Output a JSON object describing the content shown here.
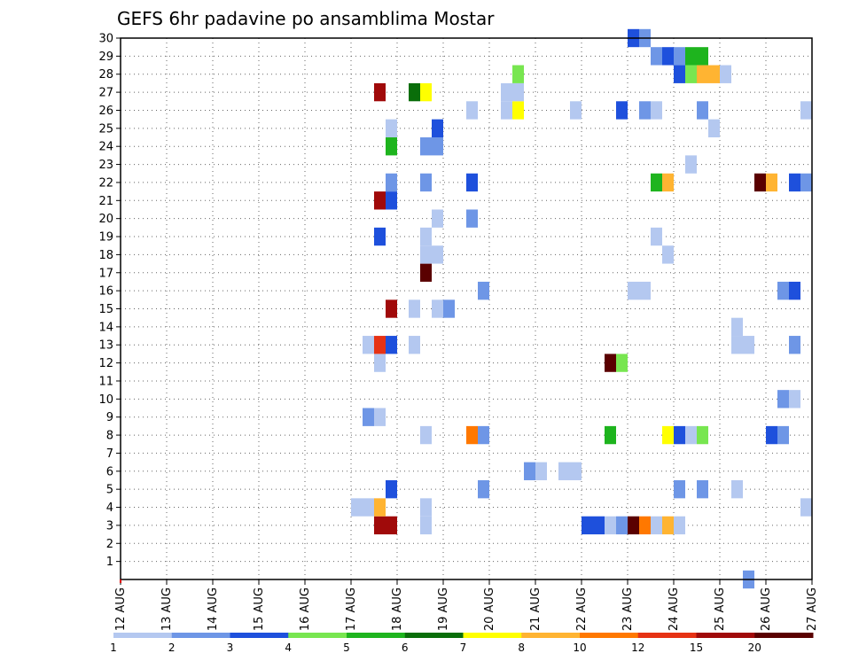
{
  "chart_data": {
    "type": "heatmap",
    "title": "GEFS 6hr padavine po ansamblima Mostar",
    "xlabel": "",
    "ylabel": "",
    "x_ticks": [
      "12 AUG",
      "13 AUG",
      "14 AUG",
      "15 AUG",
      "16 AUG",
      "17 AUG",
      "18 AUG",
      "19 AUG",
      "20 AUG",
      "21 AUG",
      "22 AUG",
      "23 AUG",
      "24 AUG",
      "25 AUG",
      "26 AUG",
      "27 AUG"
    ],
    "y_ticks": [
      "1",
      "2",
      "3",
      "4",
      "5",
      "6",
      "7",
      "8",
      "9",
      "10",
      "11",
      "12",
      "13",
      "14",
      "15",
      "16",
      "17",
      "18",
      "19",
      "20",
      "21",
      "22",
      "23",
      "24",
      "25",
      "26",
      "27",
      "28",
      "29",
      "30"
    ],
    "x_range_days": [
      0,
      15
    ],
    "y_range": [
      0,
      30
    ],
    "grid": true,
    "colorbar": {
      "labels": [
        "1",
        "2",
        "3",
        "4",
        "5",
        "6",
        "7",
        "8",
        "10",
        "12",
        "15",
        "20"
      ],
      "colors": [
        "#b4c8f0",
        "#6e96e6",
        "#1e50dc",
        "#78e650",
        "#1eb41e",
        "#0a6e0a",
        "#ffff00",
        "#ffb432",
        "#ff7800",
        "#e63214",
        "#a00a0a",
        "#5a0000"
      ]
    },
    "cell_days": 0.25,
    "cells": [
      [
        5.0,
        4,
        0
      ],
      [
        5.25,
        4,
        0
      ],
      [
        5.25,
        9,
        1
      ],
      [
        5.5,
        9,
        0
      ],
      [
        5.5,
        3,
        10
      ],
      [
        5.5,
        4,
        7
      ],
      [
        5.5,
        12,
        0
      ],
      [
        5.5,
        13,
        9
      ],
      [
        5.5,
        19,
        2
      ],
      [
        5.5,
        21,
        10
      ],
      [
        5.5,
        27,
        10
      ],
      [
        5.25,
        13,
        0
      ],
      [
        5.75,
        3,
        10
      ],
      [
        5.75,
        5,
        2
      ],
      [
        5.75,
        13,
        2
      ],
      [
        5.75,
        15,
        10
      ],
      [
        5.75,
        21,
        2
      ],
      [
        5.75,
        22,
        1
      ],
      [
        5.75,
        24,
        4
      ],
      [
        5.75,
        25,
        0
      ],
      [
        6.25,
        13,
        0
      ],
      [
        6.25,
        15,
        0
      ],
      [
        6.25,
        27,
        5
      ],
      [
        6.5,
        3,
        0
      ],
      [
        6.5,
        4,
        0
      ],
      [
        6.5,
        8,
        0
      ],
      [
        6.5,
        17,
        11
      ],
      [
        6.5,
        18,
        0
      ],
      [
        6.5,
        19,
        0
      ],
      [
        6.5,
        22,
        1
      ],
      [
        6.5,
        24,
        1
      ],
      [
        6.5,
        27,
        6
      ],
      [
        6.75,
        15,
        0
      ],
      [
        6.75,
        18,
        0
      ],
      [
        6.75,
        20,
        0
      ],
      [
        6.75,
        24,
        1
      ],
      [
        6.75,
        25,
        2
      ],
      [
        7.0,
        15,
        1
      ],
      [
        7.5,
        8,
        8
      ],
      [
        7.5,
        20,
        1
      ],
      [
        7.5,
        22,
        2
      ],
      [
        7.5,
        26,
        0
      ],
      [
        7.75,
        5,
        1
      ],
      [
        7.75,
        8,
        1
      ],
      [
        7.75,
        16,
        1
      ],
      [
        8.25,
        26,
        0
      ],
      [
        8.25,
        27,
        0
      ],
      [
        8.5,
        26,
        6
      ],
      [
        8.5,
        27,
        0
      ],
      [
        8.5,
        28,
        3
      ],
      [
        8.75,
        6,
        1
      ],
      [
        9.0,
        6,
        0
      ],
      [
        9.5,
        6,
        0
      ],
      [
        9.75,
        6,
        0
      ],
      [
        9.75,
        26,
        0
      ],
      [
        10.0,
        3,
        2
      ],
      [
        10.25,
        3,
        2
      ],
      [
        10.5,
        3,
        0
      ],
      [
        10.5,
        8,
        4
      ],
      [
        10.5,
        12,
        11
      ],
      [
        10.75,
        3,
        1
      ],
      [
        10.75,
        12,
        3
      ],
      [
        10.75,
        26,
        2
      ],
      [
        11.0,
        3,
        11
      ],
      [
        11.0,
        16,
        0
      ],
      [
        11.0,
        30,
        2
      ],
      [
        11.25,
        3,
        8
      ],
      [
        11.25,
        16,
        0
      ],
      [
        11.25,
        26,
        1
      ],
      [
        11.25,
        30,
        1
      ],
      [
        11.5,
        3,
        0
      ],
      [
        11.5,
        19,
        0
      ],
      [
        11.5,
        22,
        4
      ],
      [
        11.5,
        26,
        0
      ],
      [
        11.5,
        29,
        1
      ],
      [
        11.75,
        3,
        7
      ],
      [
        11.75,
        8,
        6
      ],
      [
        11.75,
        18,
        0
      ],
      [
        11.75,
        22,
        7
      ],
      [
        11.75,
        29,
        2
      ],
      [
        12.0,
        3,
        0
      ],
      [
        12.0,
        5,
        1
      ],
      [
        12.0,
        8,
        2
      ],
      [
        12.0,
        28,
        2
      ],
      [
        12.0,
        29,
        1
      ],
      [
        12.25,
        8,
        0
      ],
      [
        12.25,
        23,
        0
      ],
      [
        12.25,
        28,
        3
      ],
      [
        12.25,
        29,
        4
      ],
      [
        12.5,
        5,
        1
      ],
      [
        12.5,
        8,
        3
      ],
      [
        12.5,
        26,
        1
      ],
      [
        12.5,
        28,
        7
      ],
      [
        12.5,
        29,
        4
      ],
      [
        12.75,
        25,
        0
      ],
      [
        12.75,
        28,
        7
      ],
      [
        13.0,
        28,
        0
      ],
      [
        13.25,
        5,
        0
      ],
      [
        13.25,
        13,
        0
      ],
      [
        13.25,
        14,
        0
      ],
      [
        13.5,
        0,
        1
      ],
      [
        13.5,
        13,
        0
      ],
      [
        13.75,
        22,
        11
      ],
      [
        14.0,
        8,
        2
      ],
      [
        14.0,
        22,
        7
      ],
      [
        14.25,
        8,
        1
      ],
      [
        14.25,
        10,
        1
      ],
      [
        14.25,
        16,
        1
      ],
      [
        14.5,
        10,
        0
      ],
      [
        14.5,
        13,
        1
      ],
      [
        14.5,
        16,
        2
      ],
      [
        14.5,
        22,
        2
      ],
      [
        14.75,
        4,
        0
      ],
      [
        14.75,
        22,
        1
      ],
      [
        14.75,
        26,
        0
      ]
    ]
  }
}
